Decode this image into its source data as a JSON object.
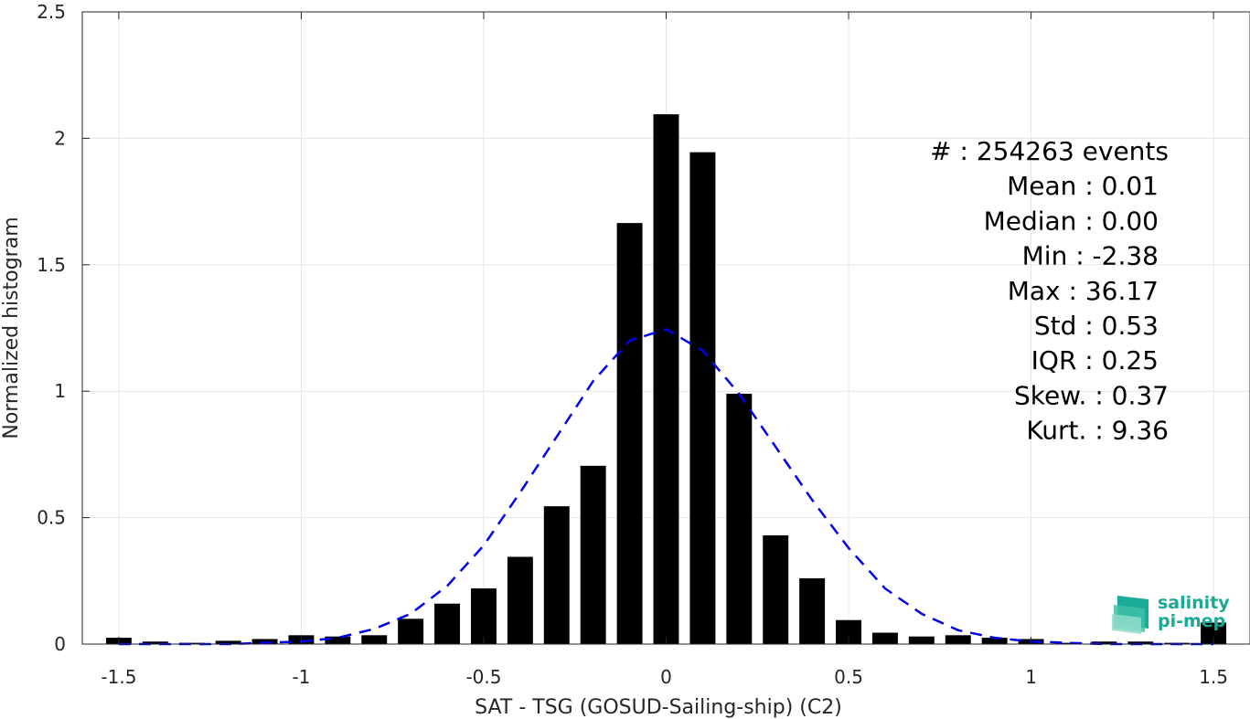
{
  "chart_data": {
    "type": "bar",
    "title": "",
    "xlabel": "SAT - TSG (GOSUD-Sailing-ship) (C2)",
    "ylabel": "Normalized histogram",
    "xlim": [
      -1.6,
      1.6
    ],
    "ylim": [
      0,
      2.5
    ],
    "grid": true,
    "xticks": [
      -1.5,
      -1,
      -0.5,
      0,
      0.5,
      1,
      1.5
    ],
    "xtick_labels": [
      "-1.5",
      "-1",
      "-0.5",
      "0",
      "0.5",
      "1",
      "1.5"
    ],
    "yticks": [
      0,
      0.5,
      1,
      1.5,
      2,
      2.5
    ],
    "ytick_labels": [
      "0",
      "0.5",
      "1",
      "1.5",
      "2",
      "2.5"
    ],
    "bar_color": "#000000",
    "bar_width": 0.07,
    "series": [
      {
        "x": [
          -1.5,
          -1.4,
          -1.3,
          -1.2,
          -1.1,
          -1.0,
          -0.9,
          -0.8,
          -0.7,
          -0.6,
          -0.5,
          -0.4,
          -0.3,
          -0.2,
          -0.1,
          0.0,
          0.1,
          0.2,
          0.3,
          0.4,
          0.5,
          0.6,
          0.7,
          0.8,
          0.9,
          1.0,
          1.1,
          1.2,
          1.3,
          1.4,
          1.5
        ],
        "values": [
          0.025,
          0.01,
          0.005,
          0.013,
          0.02,
          0.035,
          0.03,
          0.035,
          0.1,
          0.16,
          0.22,
          0.345,
          0.545,
          0.705,
          1.665,
          2.095,
          1.945,
          0.99,
          0.43,
          0.26,
          0.095,
          0.045,
          0.03,
          0.035,
          0.025,
          0.02,
          0.005,
          0.01,
          0.01,
          0.005,
          0.085
        ]
      }
    ],
    "fit_curve": {
      "style": "dashed",
      "color": "#0000ee",
      "x": [
        -1.5,
        -1.4,
        -1.3,
        -1.2,
        -1.1,
        -1.0,
        -0.9,
        -0.8,
        -0.7,
        -0.6,
        -0.5,
        -0.4,
        -0.3,
        -0.2,
        -0.1,
        0.0,
        0.1,
        0.2,
        0.3,
        0.4,
        0.5,
        0.6,
        0.7,
        0.8,
        0.9,
        1.0,
        1.1,
        1.2,
        1.3,
        1.4,
        1.5
      ],
      "values": [
        0.0,
        0.0,
        0.0,
        0.0,
        0.005,
        0.01,
        0.025,
        0.06,
        0.12,
        0.23,
        0.39,
        0.6,
        0.82,
        1.04,
        1.2,
        1.245,
        1.16,
        0.99,
        0.78,
        0.57,
        0.38,
        0.22,
        0.12,
        0.055,
        0.025,
        0.01,
        0.005,
        0.0,
        0.0,
        0.0,
        0.0
      ]
    },
    "annotations": [
      "#  : 254263 events",
      "Mean : 0.01",
      "Median : 0.00",
      "Min : -2.38",
      "Max : 36.17",
      "Std : 0.53",
      "IQR : 0.25",
      "Skew. : 0.37",
      "Kurt. : 9.36"
    ]
  },
  "logo": {
    "line1": "salinity",
    "line2": "pi-mep",
    "color": "#1aaa96"
  }
}
